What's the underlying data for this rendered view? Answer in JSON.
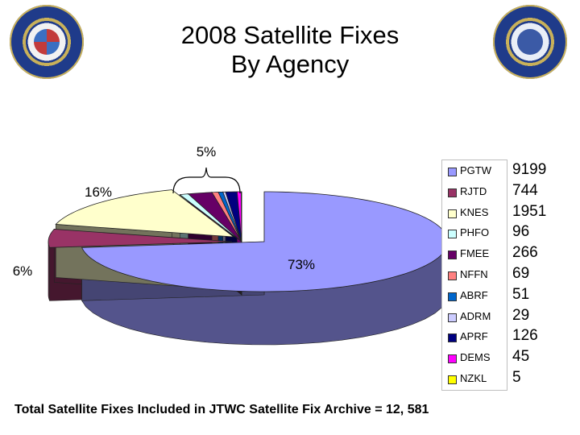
{
  "title": {
    "line1": "2008 Satellite Fixes",
    "line2": "By Agency"
  },
  "chart_data": {
    "type": "pie",
    "title": "2008 Satellite Fixes By Agency",
    "categories": [
      "PGTW",
      "RJTD",
      "KNES",
      "PHFO",
      "FMEE",
      "NFFN",
      "ABRF",
      "ADRM",
      "APRF",
      "DEMS",
      "NZKL"
    ],
    "values": [
      9199,
      744,
      1951,
      96,
      266,
      69,
      51,
      29,
      126,
      45,
      5
    ],
    "colors": [
      "#9999ff",
      "#993366",
      "#ffffcc",
      "#ccffff",
      "#660066",
      "#ff8080",
      "#0066cc",
      "#ccccff",
      "#000080",
      "#ff00ff",
      "#ffff00"
    ],
    "data_labels": {
      "pgtw": "73%",
      "kanes": "16%",
      "rjtd": "6%",
      "others_bracket": "5%"
    },
    "legend_position": "right",
    "three_d": true
  },
  "footer": {
    "text": "Total Satellite Fixes Included in JTWC Satellite Fix Archive = 12, 581"
  },
  "logos": {
    "left": "command-seal",
    "right": "fifty-years-seal"
  }
}
